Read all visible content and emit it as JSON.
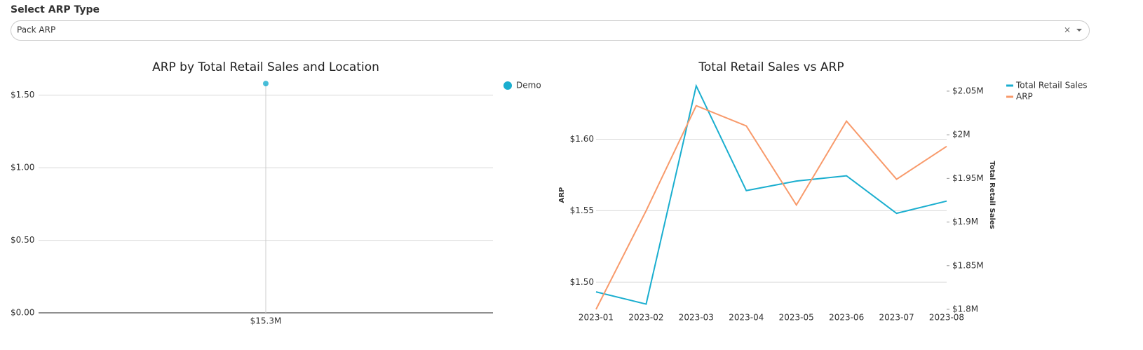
{
  "header": {
    "label": "Select ARP Type",
    "selected": "Pack ARP"
  },
  "chart_data": [
    {
      "type": "scatter",
      "title": "ARP by Total Retail Sales and Location",
      "categories": [
        "$15.3M"
      ],
      "series": [
        {
          "name": "Demo",
          "color": "#1aaecf",
          "values": [
            1.58
          ]
        }
      ],
      "ylim": [
        0,
        1.6
      ],
      "yticks": [
        {
          "value": 0,
          "label": "$0.00"
        },
        {
          "value": 0.5,
          "label": "$0.50"
        },
        {
          "value": 1,
          "label": "$1.00"
        },
        {
          "value": 1.5,
          "label": "$1.50"
        }
      ],
      "grid": true,
      "legend": "right"
    },
    {
      "type": "line",
      "title": "Total Retail Sales vs ARP",
      "categories": [
        "2023-01",
        "2023-02",
        "2023-03",
        "2023-04",
        "2023-05",
        "2023-06",
        "2023-07",
        "2023-08"
      ],
      "y_label": "ARP",
      "y2_label": "Total Retail Sales",
      "series": [
        {
          "name": "Total Retail Sales",
          "color": "#1aaecf",
          "axis": "y2",
          "values": [
            1820000,
            1806000,
            2056000,
            1936000,
            1947000,
            1953000,
            1910000,
            1924000
          ]
        },
        {
          "name": "ARP",
          "color": "#f89a6b",
          "values": [
            1.481,
            1.55,
            1.6235,
            1.6093,
            1.554,
            1.6127,
            1.572,
            1.595
          ]
        }
      ],
      "ylim": [
        1.481,
        1.641
      ],
      "yticks": [
        {
          "value": 1.5,
          "label": "$1.50"
        },
        {
          "value": 1.55,
          "label": "$1.55"
        },
        {
          "value": 1.6,
          "label": "$1.60"
        }
      ],
      "y2lim": [
        1800000,
        2062000
      ],
      "y2ticks": [
        {
          "value": 1800000,
          "label": "$1.8M"
        },
        {
          "value": 1850000,
          "label": "$1.85M"
        },
        {
          "value": 1900000,
          "label": "$1.9M"
        },
        {
          "value": 1950000,
          "label": "$1.95M"
        },
        {
          "value": 2000000,
          "label": "$2M"
        },
        {
          "value": 2050000,
          "label": "$2.05M"
        }
      ],
      "grid": true,
      "legend": "right"
    }
  ]
}
